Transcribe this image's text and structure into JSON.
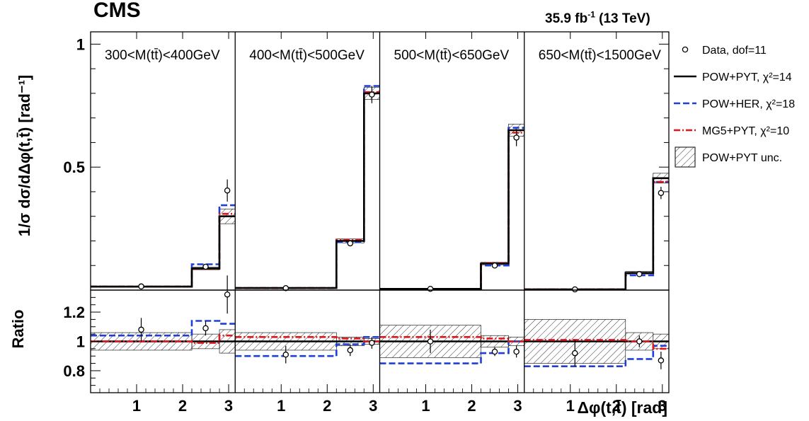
{
  "header": {
    "experiment": "CMS",
    "lumi": "35.9",
    "lumi_unit": "fb",
    "lumi_exp": "-1",
    "energy": "(13 TeV)"
  },
  "axes": {
    "ylabel_top": "1/σ dσ/dΔφ(t,t̄) [rad⁻¹]",
    "ylabel_bottom": "Ratio",
    "xlabel": "Δφ(t,t̄) [rad]"
  },
  "legend": [
    {
      "label": "Data, dof=11",
      "style": "marker"
    },
    {
      "label": "POW+PYT, χ²=14",
      "style": "solid",
      "color": "#000000"
    },
    {
      "label": "POW+HER, χ²=18",
      "style": "dashed",
      "color": "#1f3fd6"
    },
    {
      "label": "MG5+PYT, χ²=10",
      "style": "dashdot",
      "color": "#e0161c"
    },
    {
      "label": "POW+PYT unc.",
      "style": "hatch"
    }
  ],
  "chart_data": {
    "type": "line",
    "subtype": "step-histogram-multipanel",
    "x_edges": [
      0,
      2.2,
      2.8,
      3.14159
    ],
    "x_ticks": [
      "1",
      "2",
      "3"
    ],
    "top_ylim": [
      0,
      1.05
    ],
    "top_yticks": [
      "0.5",
      "1"
    ],
    "ratio_ylim": [
      0.65,
      1.35
    ],
    "ratio_yticks": [
      "0.8",
      "1",
      "1.2"
    ],
    "panels": [
      {
        "label": "300<M(tt̄)<400GeV",
        "data": [
          0.015,
          0.095,
          0.405
        ],
        "data_err": [
          0.002,
          0.008,
          0.045
        ],
        "pow_pyt": [
          0.014,
          0.088,
          0.3
        ],
        "pow_pyt_unc": [
          0.0008,
          0.005,
          0.03
        ],
        "pow_her": [
          0.0145,
          0.105,
          0.345
        ],
        "mg5_pyt": [
          0.014,
          0.087,
          0.31
        ],
        "ratio_data": [
          1.08,
          1.09,
          1.32
        ],
        "ratio_data_err": [
          0.08,
          0.05,
          0.13
        ],
        "ratio_pow_pyt_unc": [
          0.06,
          0.05,
          0.08
        ],
        "ratio_pow_her": [
          1.04,
          1.14,
          1.12
        ],
        "ratio_mg5_pyt": [
          1.0,
          0.99,
          1.04
        ]
      },
      {
        "label": "400<M(tt̄)<500GeV",
        "data": [
          0.008,
          0.19,
          0.795
        ],
        "data_err": [
          0.002,
          0.008,
          0.035
        ],
        "pow_pyt": [
          0.0085,
          0.2,
          0.8
        ],
        "pow_pyt_unc": [
          0.0007,
          0.008,
          0.025
        ],
        "pow_her": [
          0.008,
          0.195,
          0.83
        ],
        "mg5_pyt": [
          0.0088,
          0.205,
          0.805
        ],
        "ratio_data": [
          0.91,
          0.94,
          0.99
        ],
        "ratio_data_err": [
          0.06,
          0.04,
          0.04
        ],
        "ratio_pow_pyt_unc": [
          0.06,
          0.03,
          0.02
        ],
        "ratio_pow_her": [
          0.9,
          0.98,
          1.03
        ],
        "ratio_mg5_pyt": [
          1.03,
          1.02,
          1.0
        ]
      },
      {
        "label": "500<M(tt̄)<650GeV",
        "data": [
          0.005,
          0.1,
          0.62
        ],
        "data_err": [
          0.002,
          0.006,
          0.035
        ],
        "pow_pyt": [
          0.005,
          0.108,
          0.65
        ],
        "pow_pyt_unc": [
          0.0006,
          0.005,
          0.025
        ],
        "pow_her": [
          0.004,
          0.1,
          0.66
        ],
        "mg5_pyt": [
          0.005,
          0.11,
          0.64
        ],
        "ratio_data": [
          1.0,
          0.93,
          0.93
        ],
        "ratio_data_err": [
          0.08,
          0.03,
          0.04
        ],
        "ratio_pow_pyt_unc": [
          0.11,
          0.04,
          0.03
        ],
        "ratio_pow_her": [
          0.85,
          0.92,
          1.0
        ],
        "ratio_mg5_pyt": [
          1.03,
          1.02,
          1.0
        ]
      },
      {
        "label": "650<M(tt̄)<1500GeV",
        "data": [
          0.003,
          0.065,
          0.395
        ],
        "data_err": [
          0.001,
          0.005,
          0.025
        ],
        "pow_pyt": [
          0.003,
          0.07,
          0.455
        ],
        "pow_pyt_unc": [
          0.0004,
          0.006,
          0.02
        ],
        "pow_her": [
          0.0025,
          0.06,
          0.44
        ],
        "mg5_pyt": [
          0.0031,
          0.07,
          0.44
        ],
        "ratio_data": [
          0.92,
          1.0,
          0.87
        ],
        "ratio_data_err": [
          0.09,
          0.04,
          0.06
        ],
        "ratio_pow_pyt_unc": [
          0.15,
          0.06,
          0.05
        ],
        "ratio_pow_her": [
          0.83,
          0.88,
          0.97
        ],
        "ratio_mg5_pyt": [
          1.01,
          1.0,
          0.95
        ]
      }
    ]
  }
}
